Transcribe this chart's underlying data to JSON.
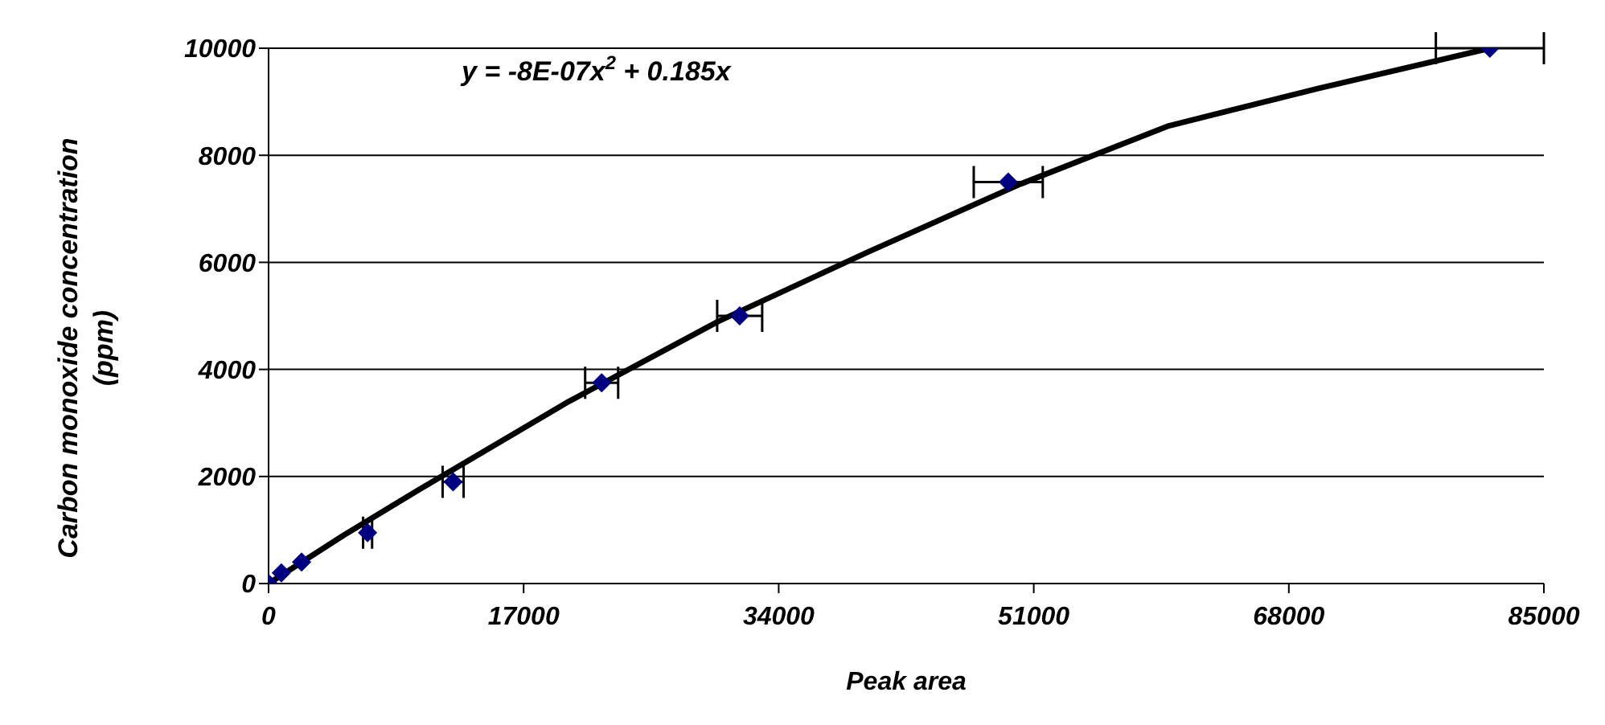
{
  "chart_data": {
    "type": "scatter",
    "xlabel": "Peak area",
    "ylabel": "Carbon monoxide concentration (ppm)",
    "annotations": [
      "y = -8E-07x$^{2}$ + 0.185x"
    ],
    "xlim": [
      0,
      85000
    ],
    "xticks": [
      0,
      17000,
      34000,
      51000,
      68000,
      85000
    ],
    "ylim": [
      0,
      10000
    ],
    "yticks": [
      0,
      2000,
      4000,
      6000,
      8000,
      10000
    ],
    "grid": "y",
    "legend": false,
    "series": [
      {
        "color": "#000080",
        "marker": "diamond",
        "x": [
          0,
          850,
          2200,
          6600,
          12300,
          22200,
          31400,
          49300,
          81400
        ],
        "values": [
          0,
          200,
          400,
          950,
          1900,
          3750,
          5000,
          7500,
          10000
        ],
        "xerrors": [
          null,
          null,
          null,
          300,
          700,
          1100,
          1500,
          2300,
          3600
        ]
      },
      {
        "type": "line",
        "color": "#000000",
        "marker": "none",
        "x": [
          0,
          5000,
          10000,
          20000,
          30000,
          40000,
          50000,
          60000,
          70000,
          81400
        ],
        "values": [
          0,
          900,
          1750,
          3400,
          4900,
          6200,
          7450,
          8550,
          9250,
          10000
        ]
      }
    ]
  }
}
